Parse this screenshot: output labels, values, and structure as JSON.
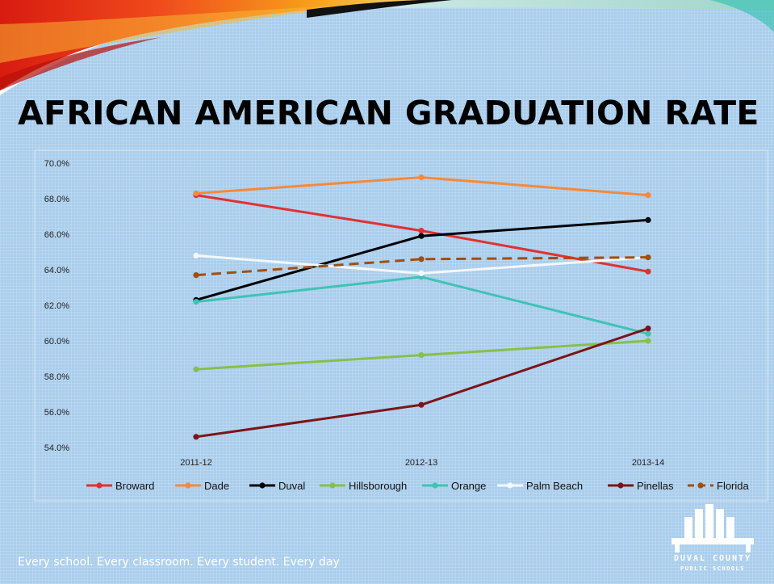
{
  "slide": {
    "title": "AFRICAN AMERICAN GRADUATION RATE",
    "tagline": "Every school. Every classroom. Every student. Every day",
    "logo": {
      "line1": "DUVAL COUNTY",
      "line2": "PUBLIC SCHOOLS",
      "icon": "building-skyline-icon"
    },
    "colors": {
      "background": "#a9cdec",
      "swoosh_red": "#e8301c",
      "swoosh_orange": "#f7a21b"
    }
  },
  "chart_data": {
    "type": "line",
    "title": "",
    "xlabel": "",
    "ylabel": "",
    "categories": [
      "2011-12",
      "2012-13",
      "2013-14"
    ],
    "y_tick_labels": [
      "54.0%",
      "56.0%",
      "58.0%",
      "60.0%",
      "62.0%",
      "64.0%",
      "66.0%",
      "68.0%",
      "70.0%"
    ],
    "ylim": [
      54,
      70
    ],
    "grid": false,
    "legend_position": "bottom",
    "series": [
      {
        "name": "Broward",
        "values": [
          68.2,
          66.2,
          63.9
        ],
        "color": "#e03131",
        "dashed": false
      },
      {
        "name": "Dade",
        "values": [
          68.3,
          69.2,
          68.2
        ],
        "color": "#f5893a",
        "dashed": false
      },
      {
        "name": "Duval",
        "values": [
          62.3,
          65.9,
          66.8
        ],
        "color": "#000000",
        "dashed": false
      },
      {
        "name": "Hillsborough",
        "values": [
          58.4,
          59.2,
          60.0
        ],
        "color": "#86c04a",
        "dashed": false
      },
      {
        "name": "Orange",
        "values": [
          62.2,
          63.6,
          60.4
        ],
        "color": "#3ec3b5",
        "dashed": false
      },
      {
        "name": "Palm Beach",
        "values": [
          64.8,
          63.8,
          64.7
        ],
        "color": "#f4f7fb",
        "dashed": false
      },
      {
        "name": "Pinellas",
        "values": [
          54.6,
          56.4,
          60.7
        ],
        "color": "#7c1417",
        "dashed": false
      },
      {
        "name": "Florida",
        "values": [
          63.7,
          64.6,
          64.7
        ],
        "color": "#a14e0f",
        "dashed": true
      }
    ]
  }
}
